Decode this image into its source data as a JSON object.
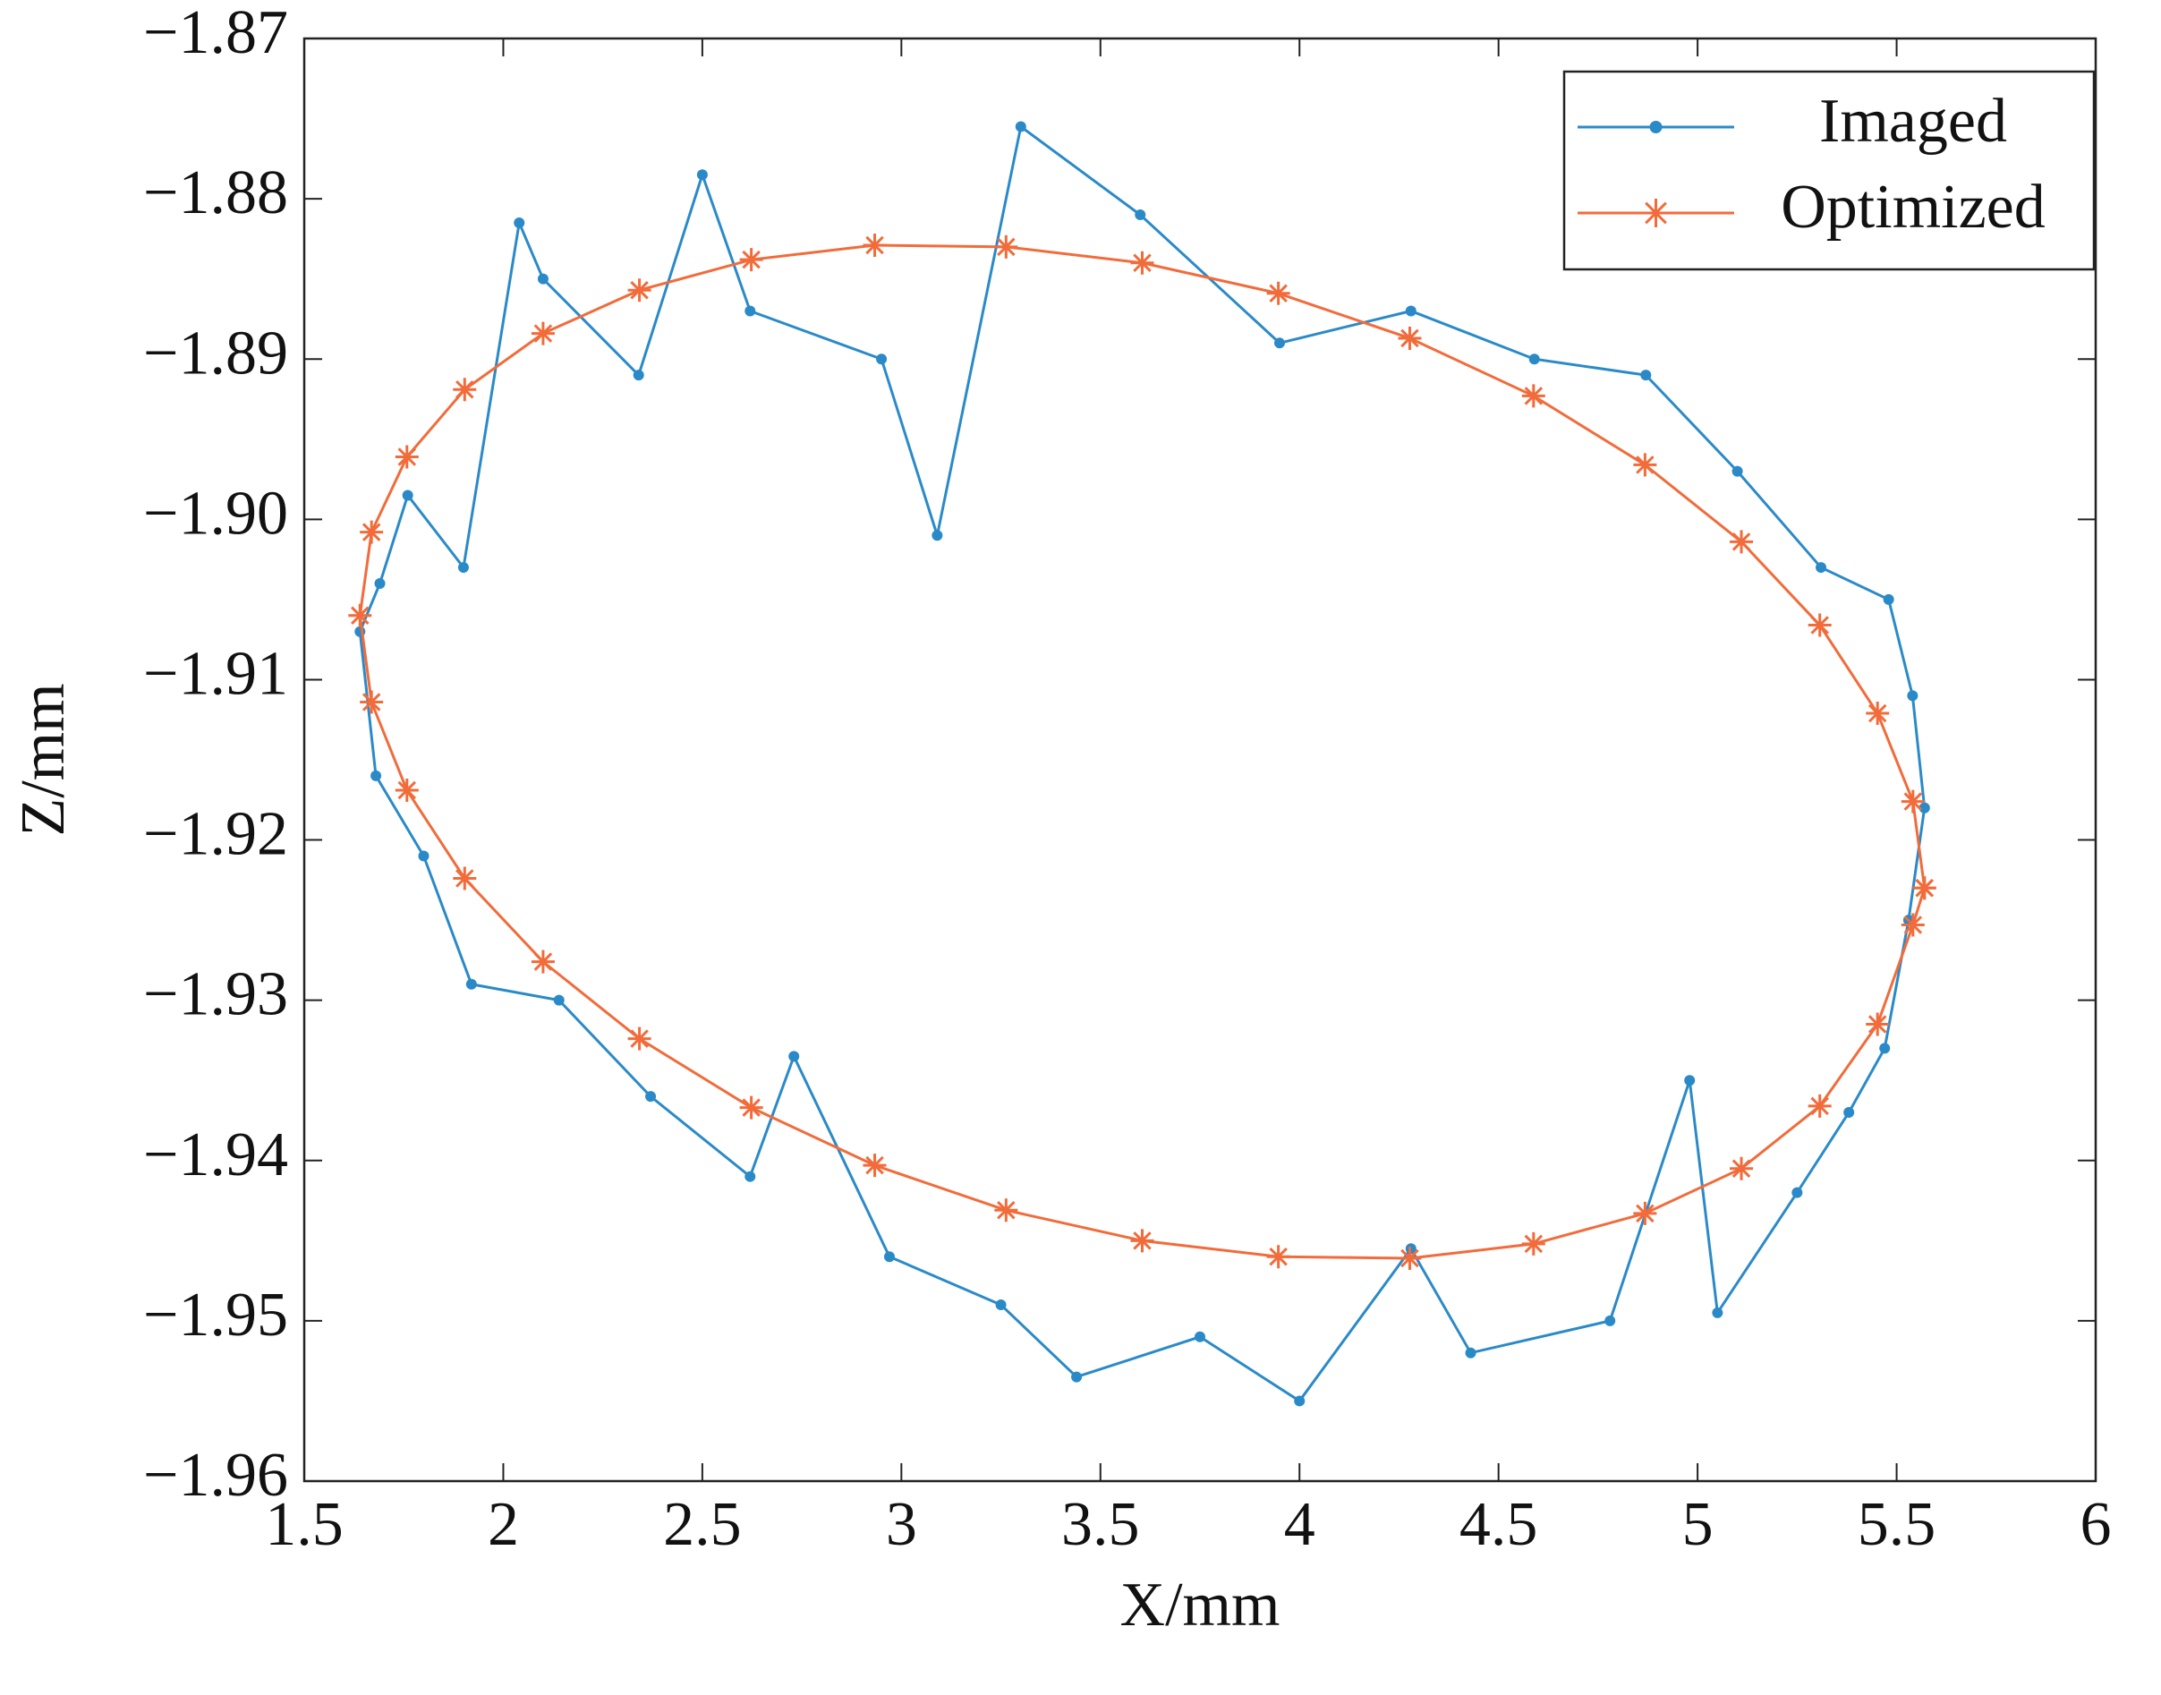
{
  "chart_data": {
    "type": "line",
    "xlabel": "X/mm",
    "ylabel": "Z/mm",
    "xlim": [
      1.5,
      6
    ],
    "ylim": [
      -1.96,
      -1.87
    ],
    "xticks": [
      1.5,
      2,
      2.5,
      3,
      3.5,
      4,
      4.5,
      5,
      5.5,
      6
    ],
    "yticks": [
      {
        "value": -1.96,
        "label": "−1.96"
      },
      {
        "value": -1.95,
        "label": "−1.95"
      },
      {
        "value": -1.94,
        "label": "−1.94"
      },
      {
        "value": -1.93,
        "label": "−1.93"
      },
      {
        "value": -1.92,
        "label": "−1.92"
      },
      {
        "value": -1.91,
        "label": "−1.91"
      },
      {
        "value": -1.9,
        "label": "−1.90"
      },
      {
        "value": -1.89,
        "label": "−1.89"
      },
      {
        "value": -1.88,
        "label": "−1.88"
      },
      {
        "value": -1.87,
        "label": "−1.87"
      }
    ],
    "legend": "northeast",
    "series": [
      {
        "name": "Imaged",
        "color": "#2a8ac8",
        "marker": "dot",
        "x": [
          5.57,
          5.54,
          5.48,
          5.31,
          5.1,
          4.87,
          4.59,
          4.28,
          3.95,
          3.6,
          3.3,
          3.09,
          2.95,
          2.62,
          2.5,
          2.34,
          2.1,
          2.04,
          1.9,
          1.76,
          1.69,
          1.64,
          1.68,
          1.8,
          1.92,
          2.14,
          2.37,
          2.62,
          2.73,
          2.97,
          3.25,
          3.44,
          3.75,
          4.0,
          4.28,
          4.43,
          4.78,
          4.98,
          5.05,
          5.25,
          5.38,
          5.47,
          5.53,
          5.57
        ],
        "values": [
          -1.918,
          -1.911,
          -1.905,
          -1.903,
          -1.897,
          -1.891,
          -1.89,
          -1.887,
          -1.889,
          -1.881,
          -1.8755,
          -1.901,
          -1.89,
          -1.887,
          -1.8785,
          -1.891,
          -1.885,
          -1.8815,
          -1.903,
          -1.8985,
          -1.904,
          -1.907,
          -1.916,
          -1.921,
          -1.929,
          -1.93,
          -1.936,
          -1.941,
          -1.9335,
          -1.946,
          -1.949,
          -1.9535,
          -1.951,
          -1.955,
          -1.9455,
          -1.952,
          -1.95,
          -1.935,
          -1.9495,
          -1.942,
          -1.937,
          -1.933,
          -1.925,
          -1.918
        ]
      },
      {
        "name": "Optimized",
        "color": "#f26b3a",
        "marker": "asterisk",
        "x": [
          5.57,
          5.541,
          5.452,
          5.307,
          5.11,
          4.868,
          4.588,
          4.277,
          3.947,
          3.605,
          3.263,
          2.933,
          2.623,
          2.342,
          2.1,
          1.903,
          1.758,
          1.669,
          1.64,
          1.669,
          1.758,
          1.903,
          2.1,
          2.342,
          2.623,
          2.933,
          3.263,
          3.605,
          3.947,
          4.277,
          4.588,
          4.868,
          5.11,
          5.307,
          5.452,
          5.541,
          5.57
        ],
        "values": [
          -1.923,
          -1.9176,
          -1.9121,
          -1.9066,
          -1.9014,
          -1.8966,
          -1.8923,
          -1.8887,
          -1.8859,
          -1.884,
          -1.883,
          -1.8829,
          -1.8838,
          -1.8857,
          -1.8884,
          -1.8919,
          -1.8961,
          -1.9008,
          -1.906,
          -1.9114,
          -1.9169,
          -1.9224,
          -1.9276,
          -1.9324,
          -1.9367,
          -1.9403,
          -1.9431,
          -1.945,
          -1.946,
          -1.9461,
          -1.9452,
          -1.9433,
          -1.9405,
          -1.9366,
          -1.9315,
          -1.9253,
          -1.923
        ]
      }
    ]
  }
}
